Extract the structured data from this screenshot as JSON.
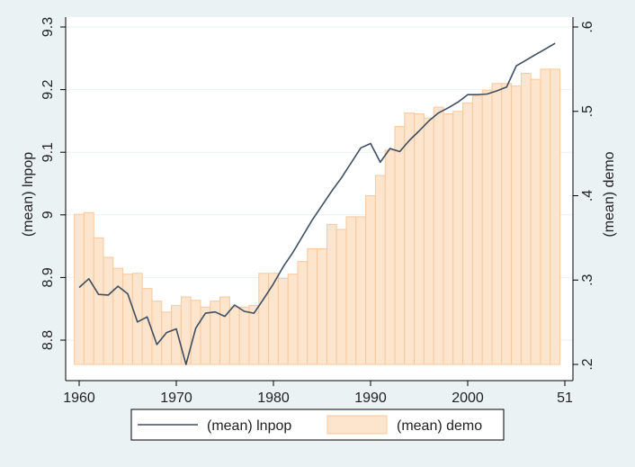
{
  "chart_data": {
    "type": "bar+line",
    "title": "",
    "xlabel": "",
    "x_ticks": [
      "1960",
      "1970",
      "1980",
      "1990",
      "2000",
      "51"
    ],
    "xlim": [
      1959,
      2010
    ],
    "left_axis": {
      "label": "(mean) lnpop",
      "ylim": [
        8.76,
        9.3
      ],
      "ticks": [
        8.8,
        8.9,
        9.0,
        9.1,
        9.2,
        9.3
      ],
      "tick_labels": [
        "8.8",
        "8.9",
        "9",
        "9.1",
        "9.2",
        "9.3"
      ]
    },
    "right_axis": {
      "label": "(mean) demo",
      "ylim": [
        0.2,
        0.6
      ],
      "ticks": [
        0.2,
        0.3,
        0.4,
        0.5,
        0.6
      ],
      "tick_labels": [
        ".2",
        ".3",
        ".4",
        ".5",
        ".6"
      ]
    },
    "x": [
      1960,
      1961,
      1962,
      1963,
      1964,
      1965,
      1966,
      1967,
      1968,
      1969,
      1970,
      1971,
      1972,
      1973,
      1974,
      1975,
      1976,
      1977,
      1978,
      1979,
      1980,
      1981,
      1982,
      1983,
      1984,
      1985,
      1986,
      1987,
      1988,
      1989,
      1990,
      1991,
      1992,
      1993,
      1994,
      1995,
      1996,
      1997,
      1998,
      1999,
      2000,
      2001,
      2002,
      2003,
      2004,
      2005,
      2006,
      2007,
      2008,
      2009
    ],
    "series": [
      {
        "name": "(mean) lnpop",
        "kind": "line",
        "axis": "left",
        "color": "#3e4e62",
        "values": [
          8.884,
          8.898,
          8.873,
          8.872,
          8.886,
          8.874,
          8.829,
          8.837,
          8.793,
          8.812,
          8.818,
          8.761,
          8.819,
          8.843,
          8.845,
          8.838,
          8.856,
          8.846,
          8.843,
          8.866,
          8.89,
          8.917,
          8.94,
          8.966,
          8.992,
          9.015,
          9.038,
          9.059,
          9.083,
          9.107,
          9.114,
          9.084,
          9.106,
          9.101,
          9.119,
          9.134,
          9.15,
          9.163,
          9.171,
          9.18,
          9.192,
          9.192,
          9.193,
          9.198,
          9.204,
          9.238,
          9.247,
          9.256,
          9.265,
          9.274
        ]
      },
      {
        "name": "(mean) demo",
        "kind": "bar",
        "axis": "right",
        "color": "#fde4cc",
        "stroke": "#f7c89c",
        "values": [
          0.378,
          0.38,
          0.35,
          0.327,
          0.314,
          0.307,
          0.308,
          0.29,
          0.275,
          0.262,
          0.27,
          0.28,
          0.276,
          0.268,
          0.275,
          0.28,
          0.268,
          0.268,
          0.27,
          0.308,
          0.308,
          0.302,
          0.307,
          0.322,
          0.337,
          0.337,
          0.366,
          0.36,
          0.375,
          0.375,
          0.4,
          0.424,
          0.454,
          0.482,
          0.498,
          0.497,
          0.492,
          0.505,
          0.497,
          0.5,
          0.51,
          0.518,
          0.525,
          0.533,
          0.533,
          0.53,
          0.545,
          0.538,
          0.55,
          0.55
        ]
      }
    ],
    "legend": {
      "placement": "bottom-center",
      "entries": [
        "(mean) lnpop",
        "(mean) demo"
      ]
    },
    "grid": true,
    "colors": {
      "plot_bg": "#ffffff",
      "outer_bg": "#eaf2f3",
      "grid": "#eaf2f3",
      "axis": "#000000"
    }
  }
}
